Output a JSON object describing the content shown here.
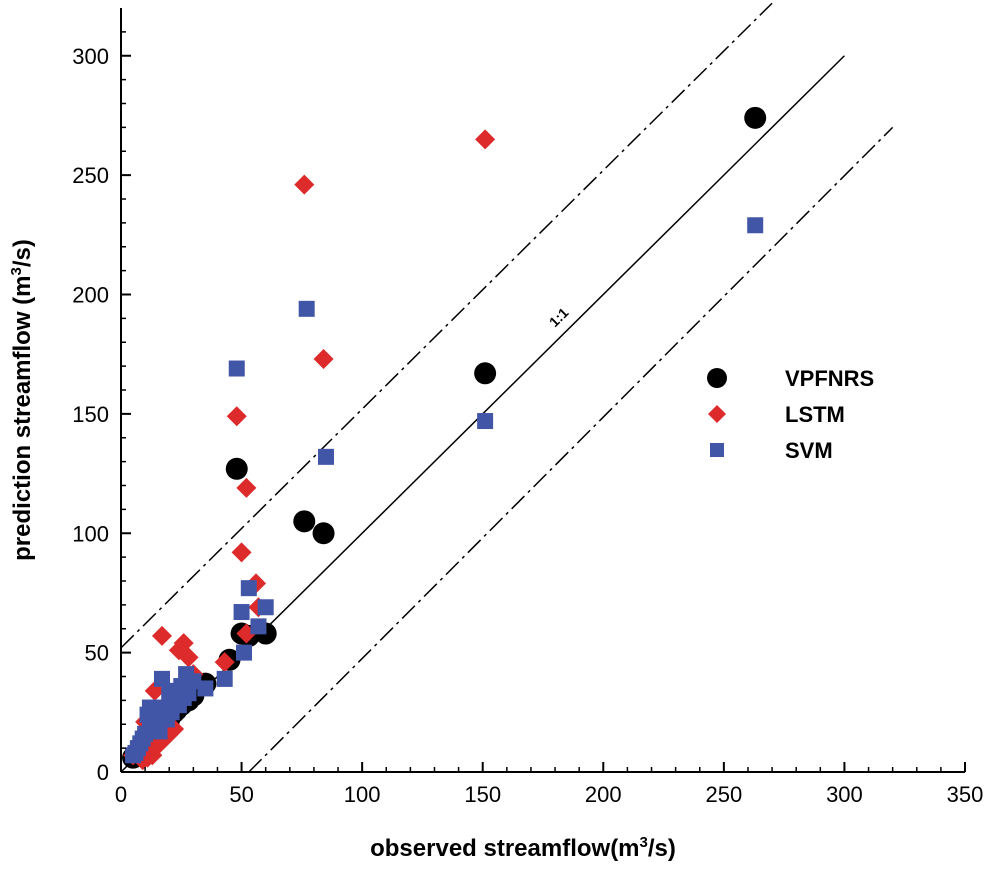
{
  "chart_data": {
    "type": "scatter",
    "xlabel": "observed streamflow(m3/s)",
    "ylabel": "prediction streamflow (m3/s)",
    "xlabel_parts": {
      "pre": "observed streamflow(m",
      "sup": "3",
      "post": "/s)"
    },
    "ylabel_parts": {
      "pre": "prediction streamflow (m",
      "sup": "3",
      "post": "/s)"
    },
    "xlim": [
      0,
      350
    ],
    "ylim": [
      0,
      320
    ],
    "xticks": [
      0,
      50,
      100,
      150,
      200,
      250,
      300,
      350
    ],
    "yticks": [
      0,
      50,
      100,
      150,
      200,
      250,
      300
    ],
    "grid": false,
    "legend_position": "right",
    "reference_lines": [
      {
        "label": "1:1",
        "x1": 0,
        "y1": 0,
        "x2": 300,
        "y2": 300,
        "style": "solid"
      },
      {
        "label": "",
        "x1": 0,
        "y1": 52,
        "x2": 270,
        "y2": 322,
        "style": "dash-dot"
      },
      {
        "label": "",
        "x1": 53,
        "y1": 0,
        "x2": 320,
        "y2": 270,
        "style": "dash-dot"
      }
    ],
    "annotations": [
      {
        "text": "1:1",
        "x": 180,
        "y": 186
      }
    ],
    "series": [
      {
        "name": "VPFNRS",
        "marker": "circle",
        "color": "#000000",
        "points": [
          [
            263,
            274
          ],
          [
            151,
            167
          ],
          [
            76,
            105
          ],
          [
            84,
            100
          ],
          [
            48,
            127
          ],
          [
            60,
            58
          ],
          [
            50,
            58
          ],
          [
            53,
            57
          ],
          [
            45,
            47
          ],
          [
            35,
            37
          ],
          [
            30,
            32
          ],
          [
            28,
            30
          ],
          [
            25,
            28
          ],
          [
            22,
            25
          ],
          [
            20,
            22
          ],
          [
            18,
            20
          ],
          [
            16,
            18
          ],
          [
            15,
            16
          ],
          [
            14,
            15
          ],
          [
            12,
            13
          ],
          [
            11,
            12
          ],
          [
            10,
            11
          ],
          [
            9,
            10
          ],
          [
            8,
            9
          ],
          [
            7,
            8
          ],
          [
            6,
            7
          ],
          [
            5,
            6
          ],
          [
            13,
            14
          ],
          [
            17,
            19
          ],
          [
            19,
            21
          ],
          [
            23,
            26
          ],
          [
            26,
            29
          ]
        ]
      },
      {
        "name": "LSTM",
        "marker": "diamond",
        "color": "#dd2a2a",
        "points": [
          [
            151,
            265
          ],
          [
            76,
            246
          ],
          [
            84,
            173
          ],
          [
            48,
            149
          ],
          [
            52,
            119
          ],
          [
            50,
            92
          ],
          [
            56,
            79
          ],
          [
            57,
            69
          ],
          [
            52,
            58
          ],
          [
            17,
            57
          ],
          [
            26,
            54
          ],
          [
            24,
            51
          ],
          [
            28,
            48
          ],
          [
            43,
            46
          ],
          [
            30,
            41
          ],
          [
            14,
            34
          ],
          [
            22,
            30
          ],
          [
            20,
            27
          ],
          [
            18,
            24
          ],
          [
            16,
            22
          ],
          [
            15,
            20
          ],
          [
            13,
            18
          ],
          [
            12,
            16
          ],
          [
            11,
            15
          ],
          [
            10,
            13
          ],
          [
            9,
            12
          ],
          [
            8,
            11
          ],
          [
            7,
            9
          ],
          [
            6,
            8
          ],
          [
            5,
            7
          ],
          [
            12,
            8
          ],
          [
            14,
            10
          ],
          [
            16,
            12
          ],
          [
            18,
            14
          ],
          [
            20,
            16
          ],
          [
            22,
            18
          ],
          [
            9,
            5
          ],
          [
            11,
            6
          ],
          [
            13,
            7
          ],
          [
            10,
            21
          ]
        ]
      },
      {
        "name": "SVM",
        "marker": "square",
        "color": "#4256a8",
        "points": [
          [
            263,
            229
          ],
          [
            77,
            194
          ],
          [
            48,
            169
          ],
          [
            151,
            147
          ],
          [
            85,
            132
          ],
          [
            53,
            77
          ],
          [
            60,
            69
          ],
          [
            50,
            67
          ],
          [
            57,
            61
          ],
          [
            51,
            50
          ],
          [
            43,
            39
          ],
          [
            17,
            39
          ],
          [
            27,
            41
          ],
          [
            35,
            35
          ],
          [
            30,
            38
          ],
          [
            25,
            36
          ],
          [
            20,
            33
          ],
          [
            22,
            30
          ],
          [
            24,
            28
          ],
          [
            18,
            27
          ],
          [
            15,
            25
          ],
          [
            13,
            24
          ],
          [
            11,
            24
          ],
          [
            12,
            20
          ],
          [
            14,
            18
          ],
          [
            16,
            17
          ],
          [
            10,
            16
          ],
          [
            9,
            14
          ],
          [
            8,
            12
          ],
          [
            7,
            10
          ],
          [
            6,
            8
          ],
          [
            5,
            7
          ],
          [
            19,
            22
          ],
          [
            21,
            25
          ],
          [
            26,
            31
          ],
          [
            28,
            33
          ],
          [
            23,
            34
          ],
          [
            12,
            27
          ]
        ]
      }
    ]
  }
}
